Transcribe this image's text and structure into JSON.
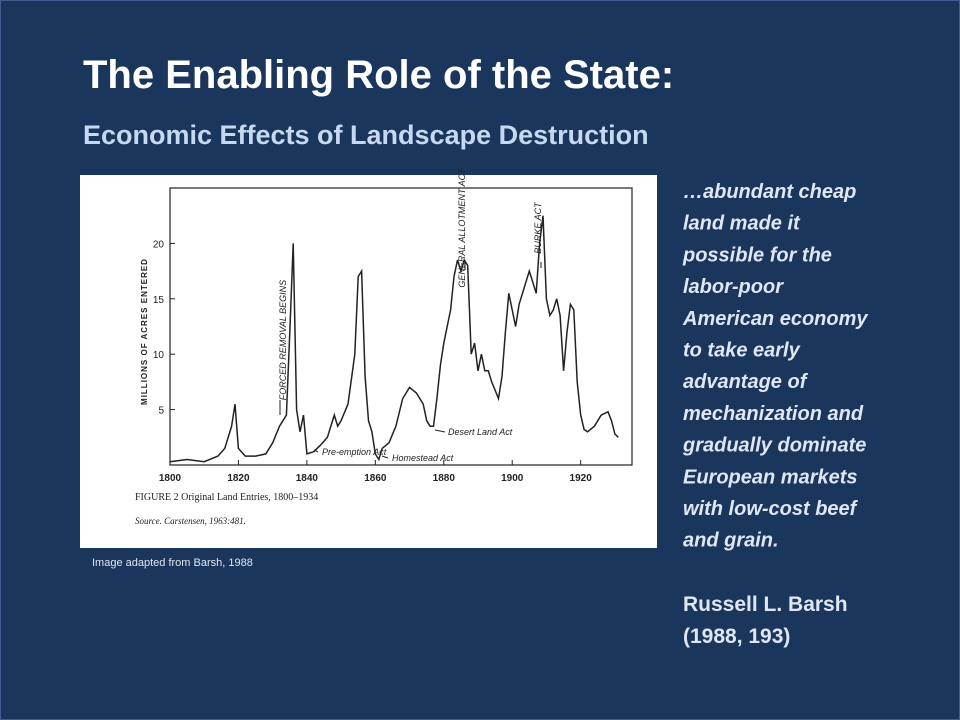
{
  "slide": {
    "title": "The Enabling Role of the State:",
    "subtitle": "Economic Effects of Landscape Destruction",
    "credit": "Image adapted from Barsh, 1988",
    "quote_lines": [
      "…abundant cheap",
      "land made it",
      "possible for the",
      "labor-poor",
      "American economy",
      "to take early",
      "advantage of",
      "mechanization and",
      "gradually dominate",
      "European markets",
      "with low-cost beef",
      "and grain."
    ],
    "author": "Russell L. Barsh",
    "citation": "(1988, 193)"
  },
  "chart_data": {
    "type": "line",
    "color": "#222222",
    "y_label": "MILLIONS OF ACRES ENTERED",
    "caption": "FIGURE 2   Original Land Entries, 1800–1934",
    "source": "Source. Carstensen, 1963:481.",
    "annotations": [
      "FORCED REMOVAL BEGINS",
      "Pre-emption Act",
      "Homestead Act",
      "Desert Land Act",
      "GENERAL ALLOTMENT ACT",
      "BURKE ACT"
    ],
    "xlim": [
      1800,
      1935
    ],
    "ylim": [
      0,
      25
    ],
    "xticks": [
      1800,
      1820,
      1840,
      1860,
      1880,
      1900,
      1920
    ],
    "yticks": [
      5,
      10,
      15,
      20
    ],
    "x": [
      1800,
      1805,
      1810,
      1814,
      1816,
      1818,
      1819,
      1820,
      1822,
      1825,
      1828,
      1830,
      1832,
      1834,
      1835,
      1836,
      1837,
      1838,
      1839,
      1840,
      1842,
      1844,
      1846,
      1848,
      1849,
      1850,
      1852,
      1854,
      1855,
      1856,
      1857,
      1858,
      1859,
      1860,
      1861,
      1862,
      1864,
      1866,
      1868,
      1870,
      1872,
      1874,
      1875,
      1876,
      1877,
      1878,
      1879,
      1880,
      1882,
      1883,
      1884,
      1885,
      1886,
      1887,
      1888,
      1889,
      1890,
      1891,
      1892,
      1893,
      1894,
      1896,
      1897,
      1898,
      1899,
      1900,
      1901,
      1902,
      1904,
      1905,
      1906,
      1907,
      1908,
      1909,
      1910,
      1911,
      1912,
      1913,
      1914,
      1915,
      1916,
      1917,
      1918,
      1919,
      1920,
      1921,
      1922,
      1924,
      1926,
      1928,
      1929,
      1930,
      1931
    ],
    "values": [
      0.3,
      0.5,
      0.3,
      0.8,
      1.5,
      3.5,
      5.5,
      1.5,
      0.8,
      0.8,
      1.0,
      2.0,
      3.5,
      4.5,
      12,
      20,
      5,
      3,
      4.5,
      1.0,
      1.2,
      1.8,
      2.5,
      4.5,
      3.5,
      4.0,
      5.5,
      10,
      17,
      17.5,
      8,
      4,
      3,
      1.0,
      0.5,
      1.5,
      2.0,
      3.5,
      6.0,
      7.0,
      6.5,
      5.5,
      4.0,
      3.5,
      3.5,
      6.0,
      9.0,
      11,
      14,
      17,
      18.5,
      17.5,
      18.5,
      18.0,
      10,
      11,
      8.5,
      10,
      8.5,
      8.5,
      7.5,
      6.0,
      8,
      12,
      15.5,
      14,
      12.5,
      14.5,
      16.5,
      17.5,
      16.5,
      15.5,
      20,
      22.5,
      15,
      13.5,
      14,
      15,
      13.5,
      8.5,
      12,
      14.5,
      14.0,
      7.5,
      4.5,
      3.2,
      3.0,
      3.5,
      4.5,
      4.8,
      4.0,
      2.8,
      2.5
    ]
  }
}
